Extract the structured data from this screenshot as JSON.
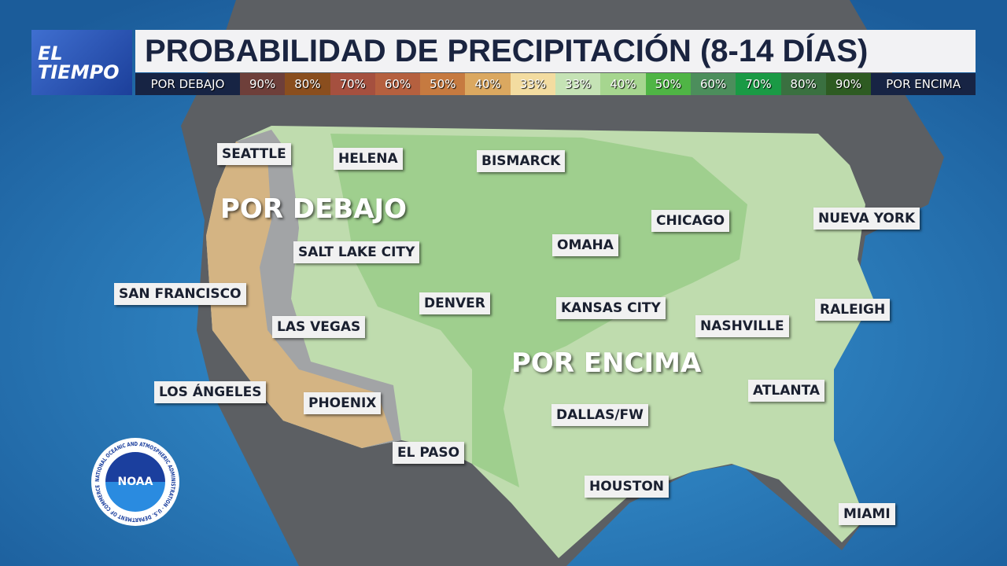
{
  "brand": {
    "line1": "EL",
    "line2": "TIEMPO"
  },
  "title": "PROBABILIDAD DE PRECIPITACIÓN (8-14 DÍAS)",
  "legend": {
    "below_label": "POR DEBAJO",
    "above_label": "POR ENCIMA",
    "cells": [
      {
        "label": "90%",
        "color": "#6e3f3a"
      },
      {
        "label": "80%",
        "color": "#8a4e1e"
      },
      {
        "label": "70%",
        "color": "#a5503f"
      },
      {
        "label": "60%",
        "color": "#b5603f"
      },
      {
        "label": "50%",
        "color": "#c67a40"
      },
      {
        "label": "40%",
        "color": "#dba860"
      },
      {
        "label": "33%",
        "color": "#f3dca0"
      },
      {
        "label": "33%",
        "color": "#c5e3b5"
      },
      {
        "label": "40%",
        "color": "#a6d68f"
      },
      {
        "label": "50%",
        "color": "#4fb545"
      },
      {
        "label": "60%",
        "color": "#4c8e5c"
      },
      {
        "label": "70%",
        "color": "#1a9a45"
      },
      {
        "label": "80%",
        "color": "#3a7040"
      },
      {
        "label": "90%",
        "color": "#2e5b22"
      }
    ]
  },
  "regions": {
    "below": "POR DEBAJO",
    "above": "POR ENCIMA"
  },
  "cities": [
    "SEATTLE",
    "HELENA",
    "BISMARCK",
    "CHICAGO",
    "NUEVA YORK",
    "SALT LAKE CITY",
    "OMAHA",
    "SAN FRANCISCO",
    "DENVER",
    "KANSAS CITY",
    "RALEIGH",
    "LAS VEGAS",
    "NASHVILLE",
    "LOS ÁNGELES",
    "PHOENIX",
    "ATLANTA",
    "DALLAS/FW",
    "EL PASO",
    "HOUSTON",
    "MIAMI"
  ],
  "noaa": {
    "label": "NOAA",
    "ring_text": "NATIONAL OCEANIC AND ATMOSPHERIC ADMINISTRATION · U.S. DEPARTMENT OF COMMERCE"
  }
}
